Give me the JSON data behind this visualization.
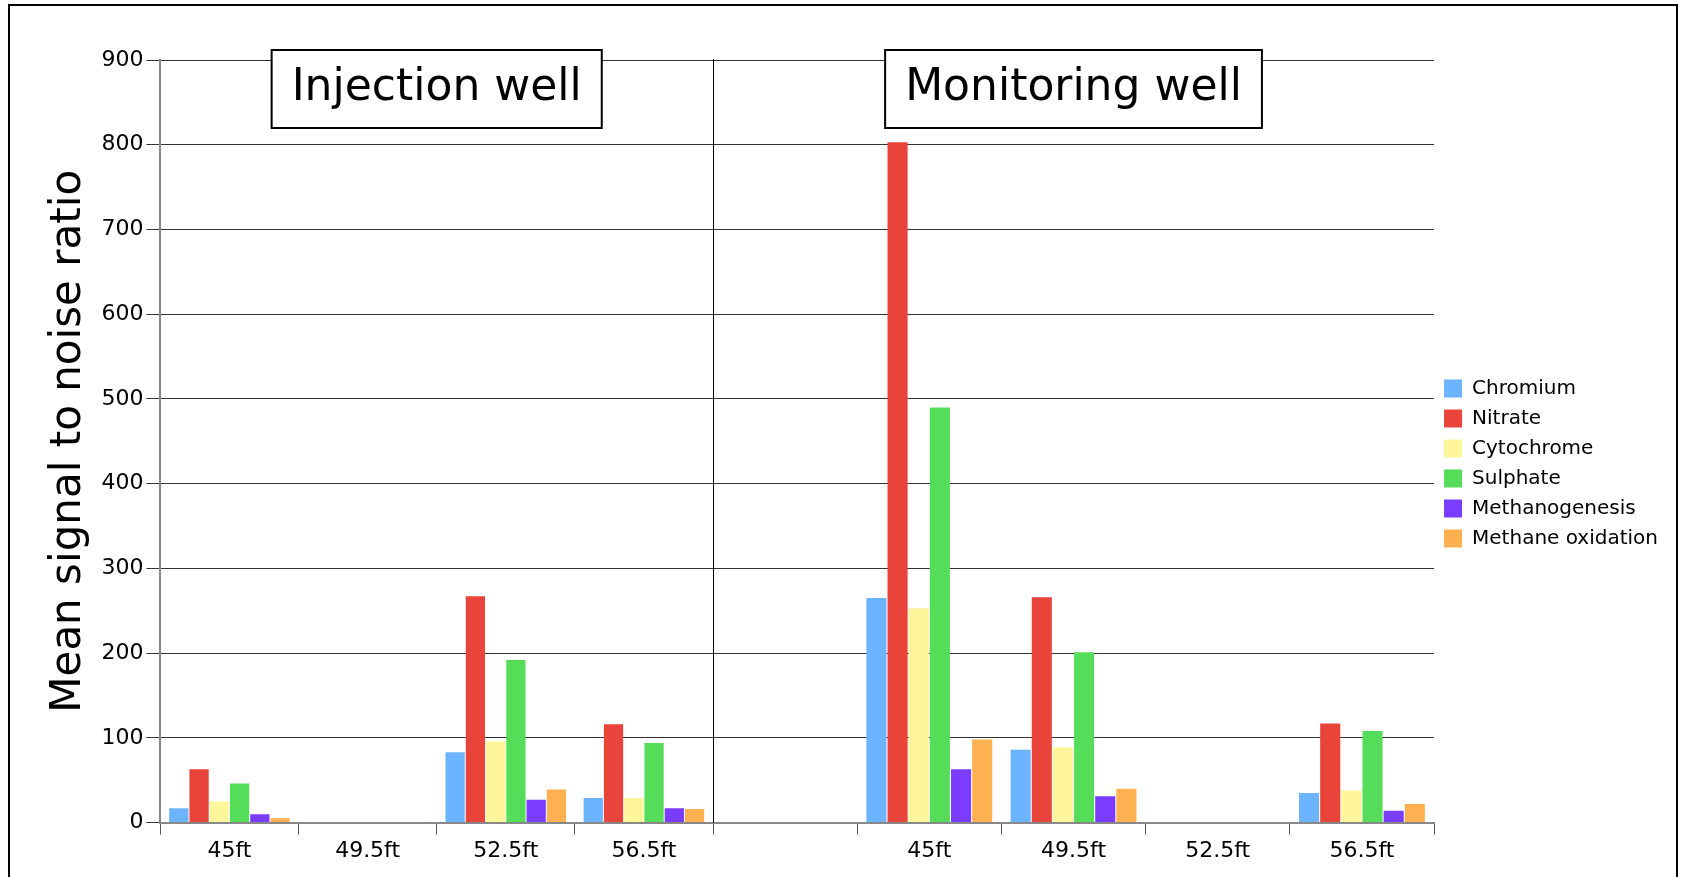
{
  "chart_data": [
    {
      "type": "bar",
      "ylabel": "Mean signal to noise ratio",
      "categories": [
        "45ft",
        "49.5ft",
        "52.5ft",
        "56.5ft"
      ],
      "series": [
        {
          "color": "#6cb4ff",
          "values": [
            17,
            0,
            83,
            29
          ]
        },
        {
          "color": "#e8443a",
          "values": [
            63,
            0,
            267,
            116
          ]
        },
        {
          "color": "#fff59a",
          "values": [
            25,
            0,
            96,
            29
          ]
        },
        {
          "color": "#55dd5a",
          "values": [
            46,
            0,
            192,
            94
          ]
        },
        {
          "color": "#7a3cff",
          "values": [
            10,
            0,
            27,
            17
          ]
        },
        {
          "color": "#ffb050",
          "values": [
            5,
            0,
            39,
            16
          ]
        }
      ],
      "ylim": [
        0,
        900
      ],
      "yticks": [
        0,
        100,
        200,
        300,
        400,
        500,
        600,
        700,
        800,
        900
      ],
      "grid": "y",
      "annotations": [
        "Injection well"
      ]
    },
    {
      "type": "bar",
      "categories": [
        null,
        "45ft",
        "49.5ft",
        "52.5ft",
        "56.5ft"
      ],
      "series": [
        {
          "name": "Chromium",
          "color": "#6cb4ff",
          "values": [
            null,
            265,
            86,
            0,
            35
          ]
        },
        {
          "name": "Nitrate",
          "color": "#e8443a",
          "values": [
            null,
            803,
            266,
            0,
            117
          ]
        },
        {
          "name": "Cytochrome",
          "color": "#fff59a",
          "values": [
            null,
            253,
            89,
            0,
            38
          ]
        },
        {
          "name": "Sulphate",
          "color": "#55dd5a",
          "values": [
            null,
            490,
            201,
            0,
            108
          ]
        },
        {
          "name": "Methanogenesis",
          "color": "#7a3cff",
          "values": [
            null,
            63,
            31,
            0,
            14
          ]
        },
        {
          "name": "Methane oxidation",
          "color": "#ffb050",
          "values": [
            null,
            98,
            40,
            0,
            22
          ]
        }
      ],
      "ylim": [
        0,
        900
      ],
      "yticks": [
        0,
        100,
        200,
        300,
        400,
        500,
        600,
        700,
        800,
        900
      ],
      "grid": "y",
      "legend": "right",
      "tick_labels": "x",
      "annotations": [
        "Monitoring well"
      ]
    }
  ]
}
